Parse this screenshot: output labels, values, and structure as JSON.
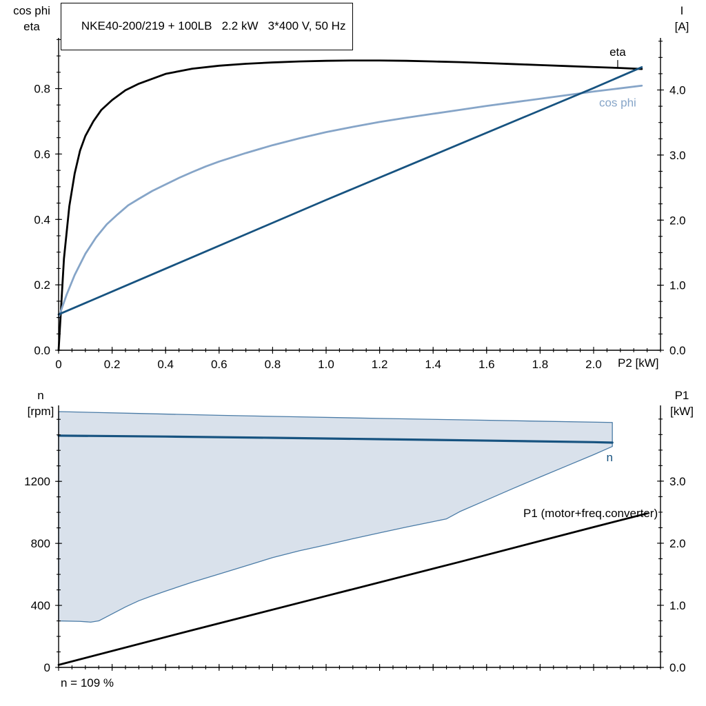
{
  "header": {
    "title": "NKE40-200/219 + 100LB   2.2 kW   3*400 V, 50 Hz"
  },
  "footnote": "n = 109 %",
  "colors": {
    "black": "#000000",
    "dark_blue": "#175380",
    "light_blue": "#86a5c8",
    "band_fill": "#d2dce8",
    "band_edge": "#4a7ba6",
    "frame": "#000000"
  },
  "chart_data": [
    {
      "type": "line",
      "title": "NKE40-200/219 + 100LB   2.2 kW   3*400 V, 50 Hz",
      "x_axis": {
        "label": "P2 [kW]",
        "min": 0,
        "max": 2.25,
        "minor_step": 0.05,
        "major_ticks": [
          0,
          0.2,
          0.4,
          0.6,
          0.8,
          1.0,
          1.2,
          1.4,
          1.6,
          1.8,
          2.0
        ],
        "tick_labels": [
          "0",
          "0.2",
          "0.4",
          "0.6",
          "0.8",
          "1.0",
          "1.2",
          "1.4",
          "1.6",
          "1.8",
          "2.0"
        ]
      },
      "y_left": {
        "label_lines": [
          "cos phi",
          "eta"
        ],
        "min": 0,
        "max": 0.955,
        "minor_step": 0.05,
        "major_ticks": [
          0,
          0.2,
          0.4,
          0.6,
          0.8
        ],
        "tick_labels": [
          "0.0",
          "0.2",
          "0.4",
          "0.6",
          "0.8"
        ]
      },
      "y_right": {
        "label_lines": [
          "I",
          "[A]"
        ],
        "min": 0,
        "max": 4.8,
        "minor_step": 0.25,
        "major_ticks": [
          0,
          1,
          2,
          3,
          4
        ],
        "tick_labels": [
          "0.0",
          "1.0",
          "2.0",
          "3.0",
          "4.0"
        ]
      },
      "series": [
        {
          "name": "eta",
          "axis": "left",
          "color": "black",
          "width": 2.8,
          "points": [
            [
              0,
              0
            ],
            [
              0.02,
              0.28
            ],
            [
              0.04,
              0.44
            ],
            [
              0.06,
              0.54
            ],
            [
              0.08,
              0.61
            ],
            [
              0.1,
              0.655
            ],
            [
              0.13,
              0.7
            ],
            [
              0.16,
              0.735
            ],
            [
              0.2,
              0.765
            ],
            [
              0.25,
              0.795
            ],
            [
              0.3,
              0.815
            ],
            [
              0.35,
              0.83
            ],
            [
              0.4,
              0.845
            ],
            [
              0.5,
              0.861
            ],
            [
              0.6,
              0.87
            ],
            [
              0.7,
              0.876
            ],
            [
              0.8,
              0.88
            ],
            [
              0.9,
              0.883
            ],
            [
              1.0,
              0.885
            ],
            [
              1.1,
              0.886
            ],
            [
              1.2,
              0.886
            ],
            [
              1.3,
              0.885
            ],
            [
              1.4,
              0.883
            ],
            [
              1.5,
              0.881
            ],
            [
              1.6,
              0.878
            ],
            [
              1.7,
              0.875
            ],
            [
              1.8,
              0.872
            ],
            [
              1.9,
              0.869
            ],
            [
              2.0,
              0.866
            ],
            [
              2.1,
              0.863
            ],
            [
              2.18,
              0.86
            ]
          ]
        },
        {
          "name": "cos phi",
          "axis": "left",
          "color": "light_blue",
          "width": 2.8,
          "points": [
            [
              0,
              0.1
            ],
            [
              0.03,
              0.17
            ],
            [
              0.06,
              0.23
            ],
            [
              0.1,
              0.295
            ],
            [
              0.14,
              0.345
            ],
            [
              0.18,
              0.385
            ],
            [
              0.22,
              0.415
            ],
            [
              0.26,
              0.443
            ],
            [
              0.3,
              0.463
            ],
            [
              0.35,
              0.487
            ],
            [
              0.4,
              0.507
            ],
            [
              0.45,
              0.527
            ],
            [
              0.5,
              0.545
            ],
            [
              0.55,
              0.562
            ],
            [
              0.6,
              0.577
            ],
            [
              0.7,
              0.603
            ],
            [
              0.8,
              0.627
            ],
            [
              0.9,
              0.648
            ],
            [
              1.0,
              0.667
            ],
            [
              1.1,
              0.683
            ],
            [
              1.2,
              0.698
            ],
            [
              1.3,
              0.711
            ],
            [
              1.4,
              0.723
            ],
            [
              1.5,
              0.735
            ],
            [
              1.6,
              0.747
            ],
            [
              1.7,
              0.758
            ],
            [
              1.8,
              0.769
            ],
            [
              1.9,
              0.78
            ],
            [
              2.0,
              0.791
            ],
            [
              2.1,
              0.801
            ],
            [
              2.18,
              0.809
            ]
          ]
        },
        {
          "name": "I",
          "axis": "right",
          "color": "dark_blue",
          "width": 2.8,
          "points": [
            [
              0,
              0.55
            ],
            [
              0.25,
              0.99
            ],
            [
              0.5,
              1.43
            ],
            [
              0.75,
              1.87
            ],
            [
              1.0,
              2.31
            ],
            [
              1.25,
              2.74
            ],
            [
              1.5,
              3.17
            ],
            [
              1.75,
              3.6
            ],
            [
              2.0,
              4.03
            ],
            [
              2.18,
              4.35
            ]
          ]
        }
      ],
      "annotations": [
        {
          "text": "eta",
          "x": 2.09,
          "y": 0.9,
          "axis": "left",
          "color": "black",
          "anchor": "middle",
          "tick": true
        },
        {
          "text": "cos phi",
          "x": 2.09,
          "y": 0.745,
          "axis": "left",
          "color": "light_blue",
          "anchor": "middle"
        }
      ]
    },
    {
      "type": "line+area",
      "x_axis": {
        "label": "",
        "min": 0,
        "max": 2.25,
        "minor_step": 0.05,
        "major_ticks": [
          0,
          0.2,
          0.4,
          0.6,
          0.8,
          1.0,
          1.2,
          1.4,
          1.6,
          1.8,
          2.0
        ],
        "tick_labels": []
      },
      "y_left": {
        "label_lines": [
          "n",
          "[rpm]"
        ],
        "min": 0,
        "max": 1690,
        "minor_step": 100,
        "major_ticks": [
          0,
          400,
          800,
          1200
        ],
        "tick_labels": [
          "0",
          "400",
          "800",
          "1200"
        ]
      },
      "y_right": {
        "label_lines": [
          "P1",
          "[kW]"
        ],
        "min": 0,
        "max": 4.22,
        "minor_step": 0.25,
        "major_ticks": [
          0,
          1,
          2,
          3
        ],
        "tick_labels": [
          "0.0",
          "1.0",
          "2.0",
          "3.0"
        ]
      },
      "band": {
        "name": "speed range (freq. converter)",
        "upper": [
          [
            0,
            1650
          ],
          [
            0.3,
            1638
          ],
          [
            0.6,
            1626
          ],
          [
            0.9,
            1616
          ],
          [
            1.2,
            1606
          ],
          [
            1.5,
            1597
          ],
          [
            1.8,
            1588
          ],
          [
            2.07,
            1580
          ]
        ],
        "lower": [
          [
            0,
            300
          ],
          [
            0.08,
            297
          ],
          [
            0.12,
            292
          ],
          [
            0.15,
            300
          ],
          [
            0.2,
            345
          ],
          [
            0.25,
            390
          ],
          [
            0.3,
            430
          ],
          [
            0.35,
            462
          ],
          [
            0.4,
            492
          ],
          [
            0.5,
            550
          ],
          [
            0.6,
            602
          ],
          [
            0.7,
            655
          ],
          [
            0.8,
            708
          ],
          [
            0.9,
            752
          ],
          [
            1.0,
            790
          ],
          [
            1.1,
            830
          ],
          [
            1.2,
            868
          ],
          [
            1.3,
            905
          ],
          [
            1.4,
            940
          ],
          [
            1.45,
            958
          ],
          [
            1.5,
            1005
          ],
          [
            1.6,
            1080
          ],
          [
            1.7,
            1155
          ],
          [
            1.8,
            1228
          ],
          [
            1.9,
            1300
          ],
          [
            2.0,
            1372
          ],
          [
            2.07,
            1425
          ]
        ]
      },
      "series": [
        {
          "name": "n",
          "axis": "left",
          "color": "dark_blue",
          "width": 3.2,
          "points": [
            [
              0,
              1495
            ],
            [
              0.4,
              1489
            ],
            [
              0.8,
              1481
            ],
            [
              1.2,
              1472
            ],
            [
              1.6,
              1463
            ],
            [
              2.0,
              1453
            ],
            [
              2.07,
              1450
            ]
          ]
        },
        {
          "name": "P1",
          "axis": "right",
          "color": "black",
          "width": 2.8,
          "points": [
            [
              0,
              0.04
            ],
            [
              0.5,
              0.6
            ],
            [
              1.0,
              1.15
            ],
            [
              1.5,
              1.7
            ],
            [
              2.0,
              2.26
            ],
            [
              2.2,
              2.48
            ]
          ]
        }
      ],
      "annotations": [
        {
          "text": "n",
          "x": 2.06,
          "y": 1330,
          "axis": "left",
          "color": "dark_blue",
          "anchor": "middle"
        },
        {
          "text": "P1 (motor+freq.converter)",
          "x": 2.24,
          "y": 2.42,
          "axis": "right",
          "color": "black",
          "anchor": "end"
        }
      ]
    }
  ]
}
